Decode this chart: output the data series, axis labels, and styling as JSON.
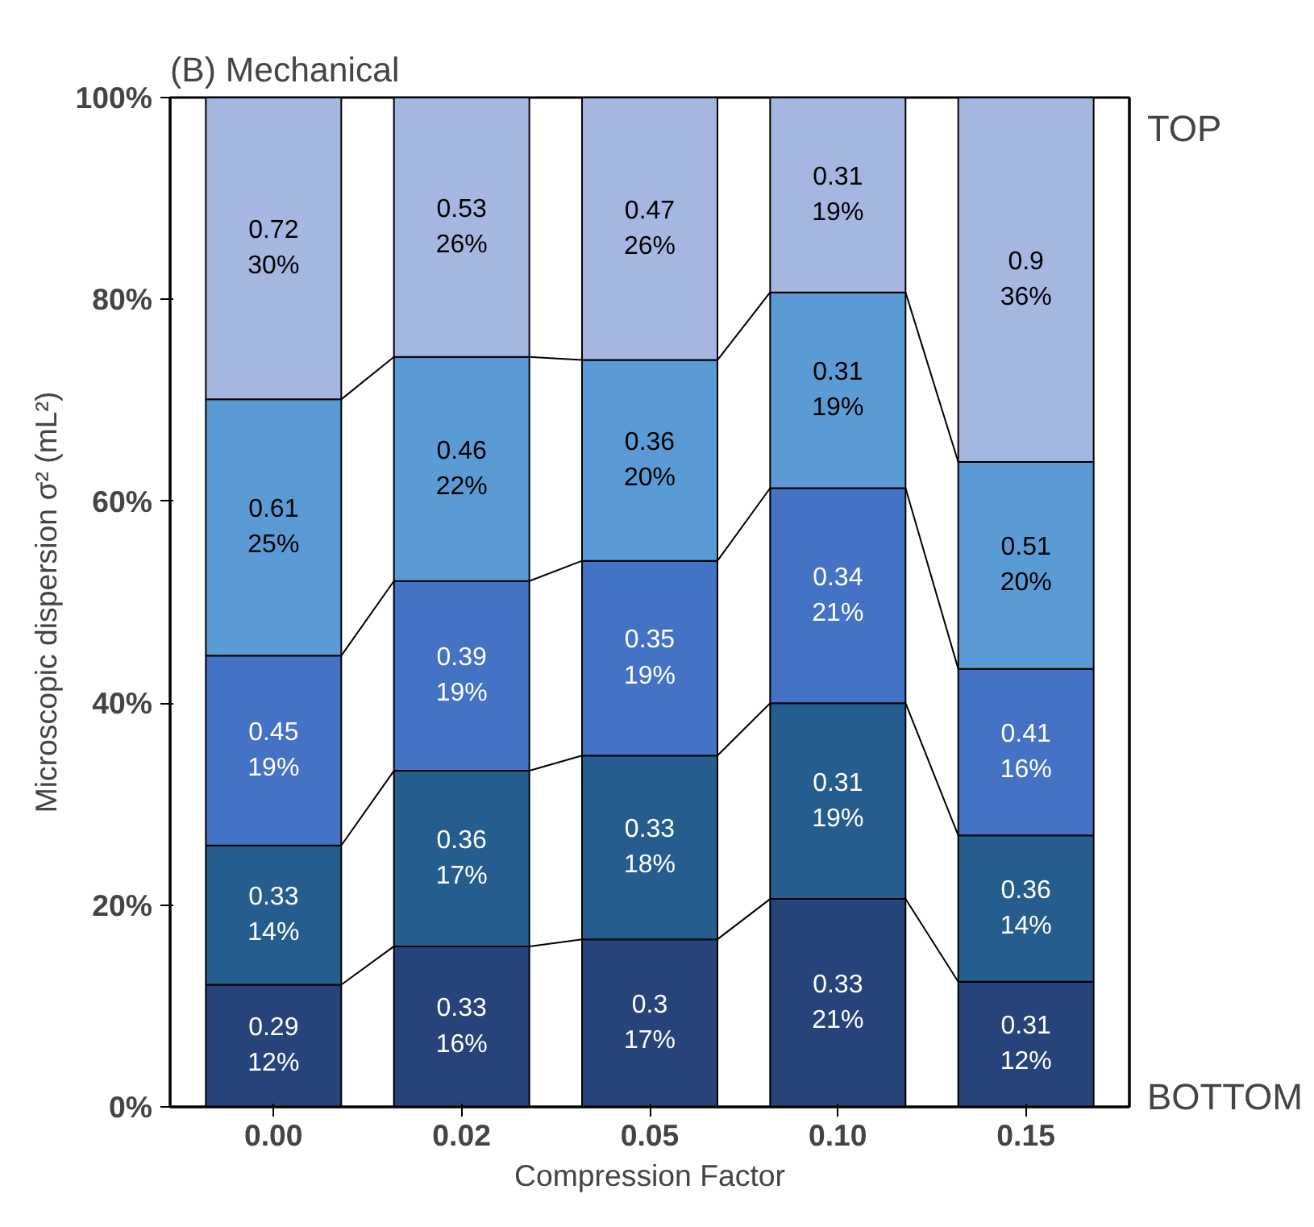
{
  "chart_data": {
    "type": "bar",
    "stacked": true,
    "title": "(B) Mechanical",
    "xlabel": "Compression Factor",
    "ylabel": "Microscopic dispersion σ² (mL²)",
    "categories": [
      "0.00",
      "0.02",
      "0.05",
      "0.10",
      "0.15"
    ],
    "ylim": [
      0,
      100
    ],
    "yticks": [
      {
        "value": 0,
        "label": "0%"
      },
      {
        "value": 20,
        "label": "20%"
      },
      {
        "value": 40,
        "label": "40%"
      },
      {
        "value": 60,
        "label": "60%"
      },
      {
        "value": 80,
        "label": "80%"
      },
      {
        "value": 100,
        "label": "100%"
      }
    ],
    "series": [
      {
        "color": "#27447a",
        "values": [
          12.1,
          15.9,
          16.6,
          20.6,
          12.4
        ],
        "value_labels": [
          "0.29\n12%",
          "0.33\n16%",
          "0.3\n17%",
          "0.33\n21%",
          "0.31\n12%"
        ]
      },
      {
        "color": "#255e8e",
        "values": [
          13.8,
          17.4,
          18.2,
          19.4,
          14.5
        ],
        "value_labels": [
          "0.33\n14%",
          "0.36\n17%",
          "0.33\n18%",
          "0.31\n19%",
          "0.36\n14%"
        ]
      },
      {
        "color": "#4472c4",
        "values": [
          18.8,
          18.8,
          19.3,
          21.3,
          16.5
        ],
        "value_labels": [
          "0.45\n19%",
          "0.39\n19%",
          "0.35\n19%",
          "0.34\n21%",
          "0.41\n16%"
        ]
      },
      {
        "color": "#5b9bd5",
        "values": [
          25.4,
          22.2,
          19.9,
          19.4,
          20.5
        ],
        "value_labels": [
          "0.61\n25%",
          "0.46\n22%",
          "0.36\n20%",
          "0.31\n19%",
          "0.51\n20%"
        ]
      },
      {
        "color": "#a5b7e0",
        "values": [
          29.9,
          25.7,
          26.0,
          19.3,
          36.1
        ],
        "value_labels": [
          "0.72\n30%",
          "0.53\n26%",
          "0.47\n26%",
          "0.31\n19%",
          "0.9\n36%"
        ]
      }
    ],
    "annotations": [
      "TOP",
      "BOTTOM"
    ]
  }
}
